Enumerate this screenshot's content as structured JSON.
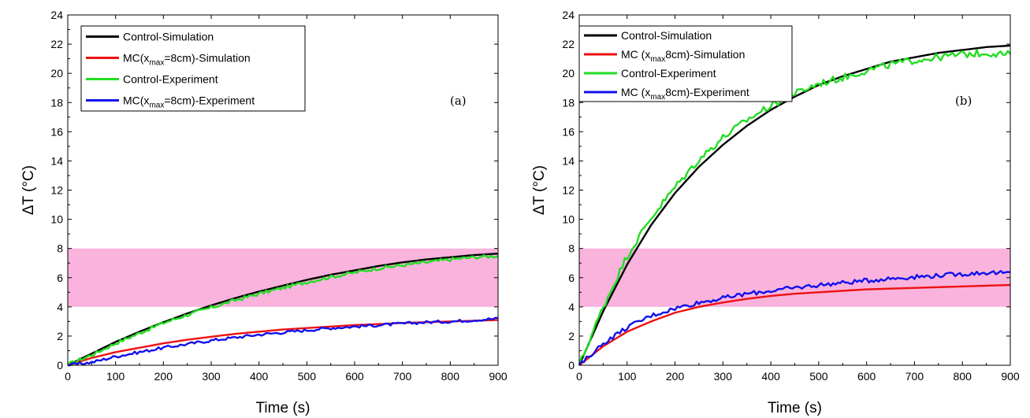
{
  "chart_data": [
    {
      "type": "line",
      "panel_label": "(a)",
      "xlabel": "Time (s)",
      "ylabel": "ΔT (°C)",
      "xlim": [
        0,
        900
      ],
      "ylim": [
        0,
        24
      ],
      "x_ticks": [
        0,
        100,
        200,
        300,
        400,
        500,
        600,
        700,
        800,
        900
      ],
      "y_ticks": [
        0,
        2,
        4,
        6,
        8,
        10,
        12,
        14,
        16,
        18,
        20,
        22,
        24
      ],
      "shaded_band": {
        "y_from": 4,
        "y_to": 8,
        "color": "#f9b3dd"
      },
      "legend_position": "top-left",
      "x": [
        0,
        50,
        100,
        150,
        200,
        250,
        300,
        350,
        400,
        450,
        500,
        550,
        600,
        650,
        700,
        750,
        800,
        850,
        900
      ],
      "series": [
        {
          "name": "Control-Simulation",
          "color": "#000000",
          "values": [
            0,
            0.8,
            1.6,
            2.3,
            2.95,
            3.55,
            4.1,
            4.6,
            5.05,
            5.45,
            5.85,
            6.2,
            6.5,
            6.8,
            7.05,
            7.25,
            7.4,
            7.55,
            7.65
          ]
        },
        {
          "name_parts": [
            "MC(x",
            "max",
            "=8cm)-Simulation"
          ],
          "color": "#ee1111",
          "values": [
            0,
            0.5,
            0.9,
            1.2,
            1.5,
            1.75,
            1.95,
            2.15,
            2.3,
            2.45,
            2.55,
            2.65,
            2.75,
            2.82,
            2.9,
            2.95,
            3.0,
            3.05,
            3.1
          ]
        },
        {
          "name": "Control-Experiment",
          "color": "#22dd22",
          "noise": 0.12,
          "values": [
            0.05,
            0.7,
            1.5,
            2.2,
            2.9,
            3.45,
            3.95,
            4.45,
            4.9,
            5.3,
            5.7,
            6.05,
            6.35,
            6.65,
            6.85,
            7.05,
            7.25,
            7.4,
            7.5
          ]
        },
        {
          "name_parts": [
            "MC(x",
            "max",
            "=8cm)-Experiment"
          ],
          "color": "#1111ee",
          "noise": 0.1,
          "values": [
            0,
            0.2,
            0.6,
            0.9,
            1.2,
            1.45,
            1.7,
            1.9,
            2.1,
            2.25,
            2.4,
            2.55,
            2.65,
            2.75,
            2.85,
            2.95,
            3.0,
            3.1,
            3.2
          ]
        }
      ]
    },
    {
      "type": "line",
      "panel_label": "(b)",
      "xlabel": "Time (s)",
      "ylabel": "ΔT (°C)",
      "xlim": [
        0,
        900
      ],
      "ylim": [
        0,
        24
      ],
      "x_ticks": [
        0,
        100,
        200,
        300,
        400,
        500,
        600,
        700,
        800,
        900
      ],
      "y_ticks": [
        0,
        2,
        4,
        6,
        8,
        10,
        12,
        14,
        16,
        18,
        20,
        22,
        24
      ],
      "shaded_band": {
        "y_from": 4,
        "y_to": 8,
        "color": "#f9b3dd"
      },
      "legend_position": "top-left",
      "x": [
        0,
        50,
        100,
        150,
        200,
        250,
        300,
        350,
        400,
        450,
        500,
        550,
        600,
        650,
        700,
        750,
        800,
        850,
        900
      ],
      "series": [
        {
          "name": "Control-Simulation",
          "color": "#000000",
          "values": [
            0,
            3.7,
            6.9,
            9.6,
            11.8,
            13.6,
            15.1,
            16.4,
            17.5,
            18.4,
            19.2,
            19.8,
            20.3,
            20.8,
            21.1,
            21.4,
            21.6,
            21.8,
            21.9
          ]
        },
        {
          "name_parts": [
            "MC (x",
            "max",
            "8cm)-Simulation"
          ],
          "color": "#ee1111",
          "values": [
            0,
            1.3,
            2.3,
            3.0,
            3.6,
            4.0,
            4.3,
            4.55,
            4.75,
            4.9,
            5.0,
            5.1,
            5.2,
            5.25,
            5.3,
            5.35,
            5.4,
            5.45,
            5.5
          ]
        },
        {
          "name": "Control-Experiment",
          "color": "#22dd22",
          "noise": 0.25,
          "values": [
            0,
            4.0,
            7.5,
            10.1,
            12.2,
            14.1,
            15.6,
            16.8,
            17.8,
            18.6,
            19.3,
            19.7,
            20.2,
            20.6,
            20.9,
            21.1,
            21.3,
            21.4,
            21.3
          ]
        },
        {
          "name_parts": [
            "MC (x",
            "max",
            "8cm)-Experiment"
          ],
          "color": "#1111ee",
          "noise": 0.15,
          "values": [
            0,
            1.5,
            2.6,
            3.4,
            3.9,
            4.3,
            4.6,
            4.9,
            5.1,
            5.3,
            5.5,
            5.65,
            5.8,
            5.95,
            6.05,
            6.15,
            6.25,
            6.35,
            6.3
          ]
        }
      ]
    }
  ]
}
